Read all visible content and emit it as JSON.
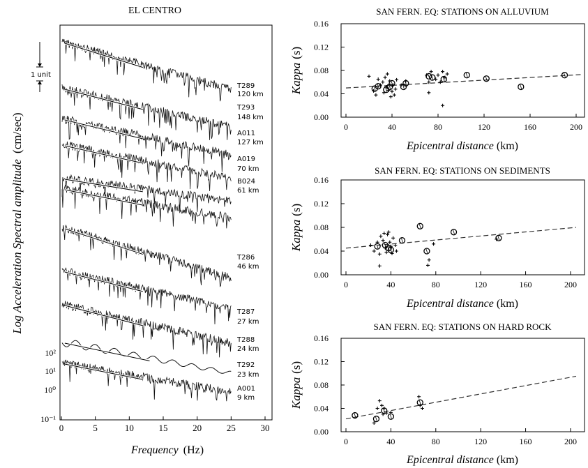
{
  "chart_data": [
    {
      "type": "line",
      "title": "EL CENTRO",
      "xlabel_prefix": "Frequency",
      "xlabel_unit": "(Hz)",
      "ylabel_prefix": "Log Acceleration Spectral amplitude",
      "ylabel_unit": "(cm/sec)",
      "xlim": [
        0,
        30
      ],
      "xticks": [
        0,
        5,
        10,
        15,
        20,
        25,
        30
      ],
      "yticks": [
        "10²",
        "10¹",
        "10⁰",
        "10⁻¹"
      ],
      "scale_bar_label": "1 unit",
      "series": [
        {
          "station": "T289",
          "distance": "120 km"
        },
        {
          "station": "T293",
          "distance": "148 km"
        },
        {
          "station": "A011",
          "distance": "127 km"
        },
        {
          "station": "A019",
          "distance": "70 km"
        },
        {
          "station": "B024",
          "distance": "61 km"
        },
        {
          "station": "T286",
          "distance": "46 km"
        },
        {
          "station": "T287",
          "distance": "27 km"
        },
        {
          "station": "T288",
          "distance": "24 km"
        },
        {
          "station": "T292",
          "distance": "23 km"
        },
        {
          "station": "A001",
          "distance": "9 km"
        }
      ]
    },
    {
      "type": "scatter",
      "title": "SAN FERN. EQ: STATIONS ON ALLUVIUM",
      "xlabel_prefix": "Epicentral distance",
      "xlabel_unit": "(km)",
      "ylabel_prefix": "Kappa",
      "ylabel_unit": "(s)",
      "xlim": [
        0,
        200
      ],
      "ylim": [
        0,
        0.16
      ],
      "xticks": [
        0,
        40,
        80,
        120,
        160,
        200
      ],
      "yticks": [
        "0.00",
        "0.04",
        "0.08",
        "0.12",
        "0.16"
      ],
      "trend": {
        "x0": 0,
        "y0": 0.05,
        "x1": 205,
        "y1": 0.073
      },
      "circles": [
        [
          25,
          0.049
        ],
        [
          28,
          0.053
        ],
        [
          35,
          0.047
        ],
        [
          38,
          0.052
        ],
        [
          40,
          0.058
        ],
        [
          50,
          0.052
        ],
        [
          52,
          0.058
        ],
        [
          72,
          0.07
        ],
        [
          75,
          0.068
        ],
        [
          85,
          0.065
        ],
        [
          105,
          0.072
        ],
        [
          122,
          0.066
        ],
        [
          152,
          0.052
        ],
        [
          190,
          0.072
        ]
      ],
      "crosses": [
        [
          20,
          0.07
        ],
        [
          24,
          0.045
        ],
        [
          26,
          0.038
        ],
        [
          28,
          0.065
        ],
        [
          30,
          0.055
        ],
        [
          32,
          0.06
        ],
        [
          33,
          0.042
        ],
        [
          34,
          0.068
        ],
        [
          35,
          0.052
        ],
        [
          36,
          0.074
        ],
        [
          37,
          0.046
        ],
        [
          38,
          0.062
        ],
        [
          39,
          0.035
        ],
        [
          40,
          0.044
        ],
        [
          41,
          0.055
        ],
        [
          42,
          0.038
        ],
        [
          43,
          0.048
        ],
        [
          44,
          0.064
        ],
        [
          48,
          0.055
        ],
        [
          52,
          0.062
        ],
        [
          70,
          0.072
        ],
        [
          72,
          0.06
        ],
        [
          74,
          0.078
        ],
        [
          78,
          0.065
        ],
        [
          80,
          0.072
        ],
        [
          82,
          0.06
        ],
        [
          84,
          0.078
        ],
        [
          86,
          0.068
        ],
        [
          88,
          0.074
        ],
        [
          84,
          0.02
        ],
        [
          72,
          0.042
        ]
      ]
    },
    {
      "type": "scatter",
      "title": "SAN FERN. EQ: STATIONS ON SEDIMENTS",
      "xlabel_prefix": "Epicentral distance",
      "xlabel_unit": "(km)",
      "ylabel_prefix": "Kappa",
      "ylabel_unit": "(s)",
      "xlim": [
        0,
        205
      ],
      "ylim": [
        0,
        0.16
      ],
      "xticks": [
        0,
        40,
        80,
        120,
        160,
        200
      ],
      "yticks": [
        "0.00",
        "0.04",
        "0.08",
        "0.12",
        "0.16"
      ],
      "trend": {
        "x0": 0,
        "y0": 0.045,
        "x1": 205,
        "y1": 0.08
      },
      "circles": [
        [
          28,
          0.048
        ],
        [
          35,
          0.05
        ],
        [
          38,
          0.045
        ],
        [
          40,
          0.042
        ],
        [
          50,
          0.058
        ],
        [
          66,
          0.082
        ],
        [
          72,
          0.04
        ],
        [
          96,
          0.072
        ],
        [
          136,
          0.062
        ]
      ],
      "crosses": [
        [
          22,
          0.05
        ],
        [
          25,
          0.04
        ],
        [
          28,
          0.055
        ],
        [
          30,
          0.035
        ],
        [
          31,
          0.065
        ],
        [
          33,
          0.058
        ],
        [
          34,
          0.07
        ],
        [
          35,
          0.045
        ],
        [
          36,
          0.038
        ],
        [
          37,
          0.068
        ],
        [
          38,
          0.072
        ],
        [
          39,
          0.055
        ],
        [
          40,
          0.048
        ],
        [
          41,
          0.036
        ],
        [
          42,
          0.062
        ],
        [
          44,
          0.05
        ],
        [
          45,
          0.04
        ],
        [
          30,
          0.015
        ],
        [
          74,
          0.025
        ],
        [
          73,
          0.016
        ],
        [
          78,
          0.052
        ],
        [
          134,
          0.06
        ]
      ]
    },
    {
      "type": "scatter",
      "title": "SAN FERN. EQ: STATIONS ON HARD ROCK",
      "xlabel_prefix": "Epicentral distance",
      "xlabel_unit": "(km)",
      "ylabel_prefix": "Kappa",
      "ylabel_unit": "(s)",
      "xlim": [
        0,
        205
      ],
      "ylim": [
        0,
        0.16
      ],
      "xticks": [
        0,
        40,
        80,
        120,
        160,
        200
      ],
      "yticks": [
        "0.00",
        "0.04",
        "0.08",
        "0.12",
        "0.16"
      ],
      "trend": {
        "x0": 0,
        "y0": 0.022,
        "x1": 205,
        "y1": 0.095
      },
      "circles": [
        [
          8,
          0.028
        ],
        [
          27,
          0.022
        ],
        [
          34,
          0.036
        ],
        [
          40,
          0.026
        ],
        [
          66,
          0.05
        ]
      ],
      "crosses": [
        [
          25,
          0.015
        ],
        [
          28,
          0.04
        ],
        [
          30,
          0.053
        ],
        [
          32,
          0.045
        ],
        [
          33,
          0.03
        ],
        [
          34,
          0.04
        ],
        [
          36,
          0.032
        ],
        [
          40,
          0.033
        ],
        [
          65,
          0.06
        ],
        [
          68,
          0.04
        ],
        [
          66,
          0.045
        ]
      ]
    }
  ]
}
